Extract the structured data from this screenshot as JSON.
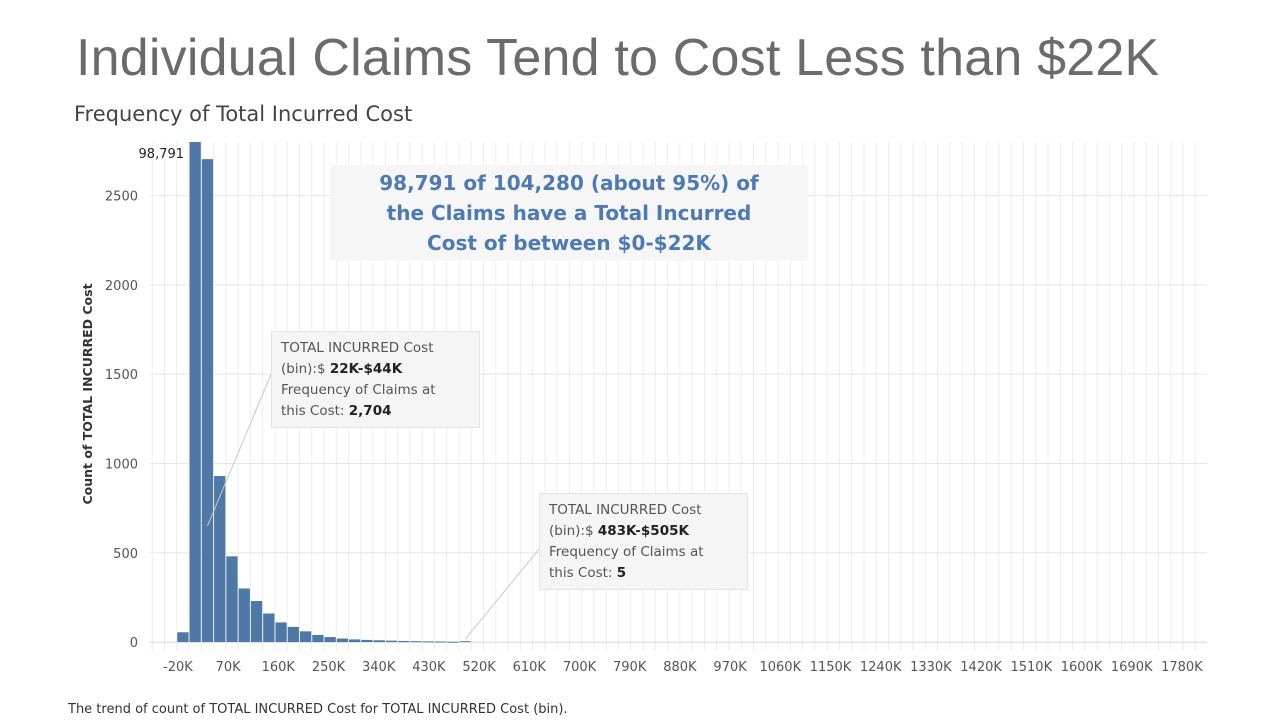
{
  "slide": {
    "title": "Individual Claims Tend to Cost Less than $22K",
    "footer_note": "The trend of count of TOTAL INCURRED Cost for TOTAL INCURRED Cost (bin)."
  },
  "colors": {
    "bar": "#4e79a7",
    "headline": "#4e7ab3",
    "grid": "#e6e6e6"
  },
  "headline": {
    "text": "98,791 of 104,280 (about 95%) of the Claims have a Total Incurred Cost of between $0-$22K"
  },
  "callouts": [
    {
      "line1": "TOTAL INCURRED Cost",
      "line2_prefix": "(bin):$ ",
      "bin": "22K-$44K",
      "line3": "Frequency of Claims at",
      "line4_prefix": "this Cost: ",
      "count": "2,704"
    },
    {
      "line1": "TOTAL INCURRED Cost",
      "line2_prefix": "(bin):$ ",
      "bin": "483K-$505K",
      "line3": "Frequency of Claims at",
      "line4_prefix": "this Cost: ",
      "count": "5"
    }
  ],
  "chart_data": {
    "type": "bar",
    "title": "Frequency of Total Incurred Cost",
    "xlabel": "",
    "ylabel": "Count of TOTAL INCURRED Cost",
    "bin_width_k": 22,
    "x_tick_labels": [
      "-20K",
      "70K",
      "160K",
      "250K",
      "340K",
      "430K",
      "520K",
      "610K",
      "700K",
      "790K",
      "880K",
      "970K",
      "1060K",
      "1150K",
      "1240K",
      "1330K",
      "1420K",
      "1510K",
      "1600K",
      "1690K",
      "1780K"
    ],
    "x_tick_values_k": [
      -20,
      70,
      160,
      250,
      340,
      430,
      520,
      610,
      700,
      790,
      880,
      970,
      1060,
      1150,
      1240,
      1330,
      1420,
      1510,
      1600,
      1690,
      1780
    ],
    "xlim_k": [
      -70,
      1825
    ],
    "y_ticks": [
      0,
      500,
      1000,
      1500,
      2000,
      2500
    ],
    "ylim": [
      -50,
      2800
    ],
    "grid": true,
    "bins_start_k": [
      -22,
      0,
      22,
      44,
      66,
      88,
      110,
      132,
      154,
      176,
      198,
      220,
      242,
      264,
      286,
      308,
      330,
      352,
      374,
      396,
      418,
      440,
      462,
      484
    ],
    "values": [
      55,
      98791,
      2704,
      930,
      480,
      300,
      230,
      160,
      110,
      85,
      60,
      40,
      28,
      20,
      15,
      12,
      10,
      8,
      6,
      5,
      4,
      3,
      2,
      5
    ],
    "top_label": "98,791"
  }
}
